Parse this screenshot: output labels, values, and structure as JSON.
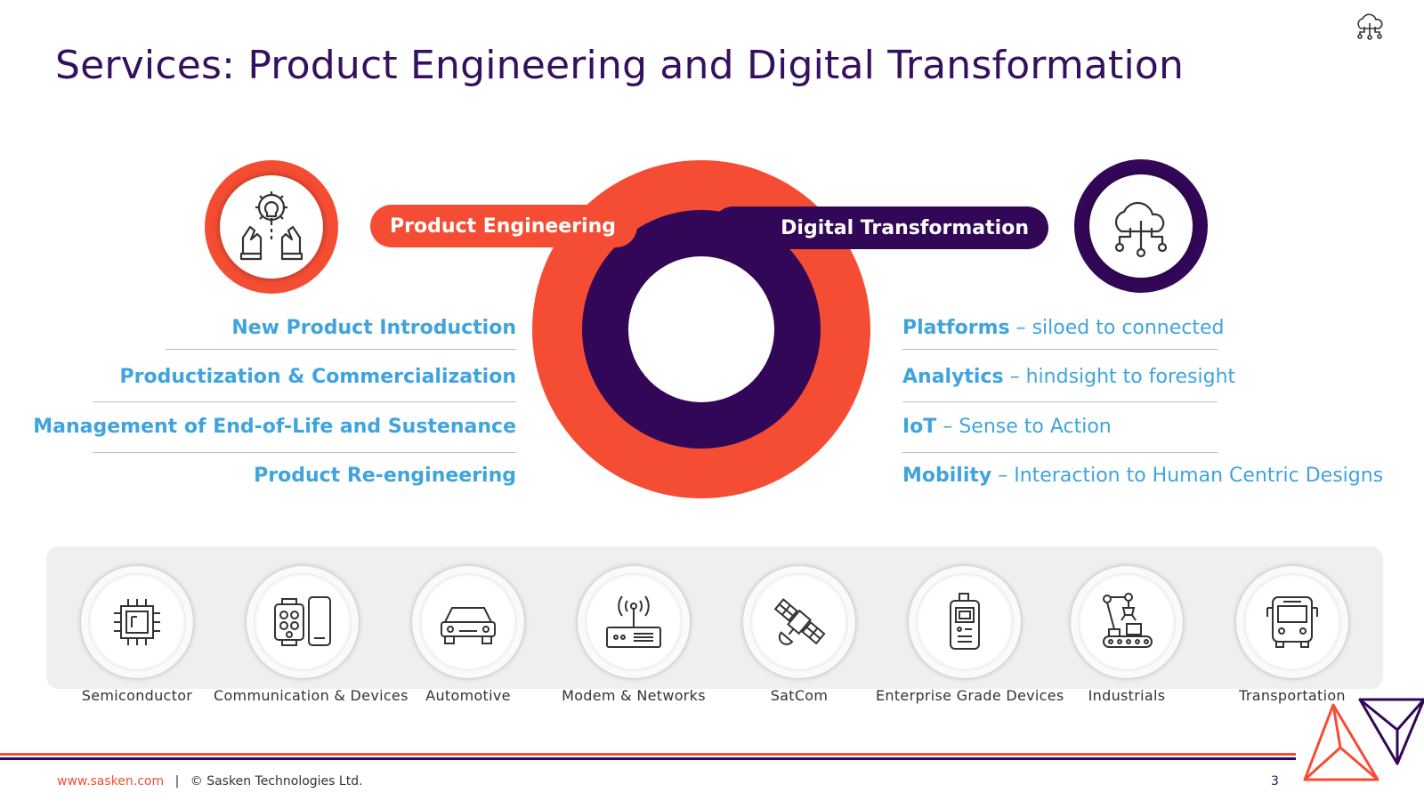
{
  "title": "Services: Product Engineering and Digital Transformation",
  "pills": {
    "product_engineering": "Product Engineering",
    "digital_transformation": "Digital Transformation"
  },
  "product_engineering_items": [
    "New Product Introduction",
    "Productization & Commercialization",
    "Management of End-of-Life and Sustenance",
    "Product Re-engineering"
  ],
  "digital_transformation_items": [
    {
      "term": "Platforms",
      "sep": " – ",
      "desc": "siloed to connected"
    },
    {
      "term": "Analytics",
      "sep": " – ",
      "desc": "hindsight to foresight"
    },
    {
      "term": "IoT",
      "sep": " – ",
      "desc": "Sense to Action"
    },
    {
      "term": "Mobility",
      "sep": " – ",
      "desc": "Interaction to Human Centric Designs"
    }
  ],
  "industries": [
    {
      "label": "Semiconductor",
      "icon": "chip-icon"
    },
    {
      "label": "Communication & Devices",
      "icon": "devices-icon"
    },
    {
      "label": "Automotive",
      "icon": "car-icon"
    },
    {
      "label": "Modem & Networks",
      "icon": "router-icon"
    },
    {
      "label": "SatCom",
      "icon": "satellite-icon"
    },
    {
      "label": "Enterprise Grade Devices",
      "icon": "handheld-device-icon"
    },
    {
      "label": "Industrials",
      "icon": "robot-arm-icon"
    },
    {
      "label": "Transportation",
      "icon": "bus-icon"
    }
  ],
  "footer": {
    "url": "www.sasken.com",
    "separator": "|",
    "copyright": "© Sasken Technologies Ltd.",
    "page_number": "3"
  },
  "colors": {
    "orange": "#f54d33",
    "purple": "#330757",
    "blue": "#3fa4de",
    "title": "#35105e"
  }
}
